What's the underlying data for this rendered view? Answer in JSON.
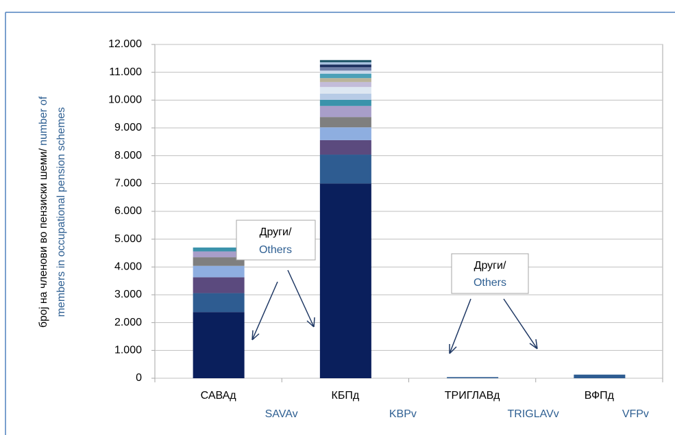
{
  "chart_data": {
    "type": "stacked_bar",
    "categories": [
      "САВАд",
      "КБПд",
      "ТРИГЛАВд",
      "ВФПд"
    ],
    "categories_en": [
      "SAVAv",
      "KBPv",
      "TRIGLAVv",
      "VFPv"
    ],
    "y_label": [
      "број на членови во пензиски шеми/",
      "number of",
      "members in occupational pension schemes"
    ],
    "annotations": [
      [
        "Други/",
        "Others"
      ],
      [
        "Други/",
        "Others"
      ]
    ],
    "ylim": [
      0,
      12000
    ],
    "yticks": [
      0,
      {
        "value": 1000,
        "label": "1.000"
      },
      {
        "value": 2000,
        "label": "2.000"
      },
      {
        "value": 3000,
        "label": "3.000"
      },
      {
        "value": 4000,
        "label": "4.000"
      },
      {
        "value": 5000,
        "label": "5.000"
      },
      {
        "value": 6000,
        "label": "6.000"
      },
      {
        "value": 7000,
        "label": "7.000"
      },
      {
        "value": 8000,
        "label": "8.000"
      },
      {
        "value": 9000,
        "label": "9.000"
      },
      {
        "value": 10000,
        "label": "10.000"
      },
      {
        "value": 11000,
        "label": "11.000"
      },
      {
        "value": 12000,
        "label": "12.000"
      }
    ],
    "grid": true,
    "series": [
      {
        "color": "#0a1f5c",
        "values": [
          2380,
          7000,
          0,
          0
        ]
      },
      {
        "color": "#2e5c91",
        "values": [
          680,
          1040,
          40,
          130
        ]
      },
      {
        "color": "#5b4a7e",
        "values": [
          570,
          520,
          0,
          0
        ]
      },
      {
        "color": "#8eaee0",
        "values": [
          410,
          460,
          0,
          0
        ]
      },
      {
        "color": "#7f7f7f",
        "values": [
          310,
          370,
          0,
          0
        ]
      },
      {
        "color": "#a89ec9",
        "values": [
          210,
          400,
          0,
          0
        ]
      },
      {
        "color": "#3a93ab",
        "values": [
          140,
          220,
          0,
          0
        ]
      },
      {
        "color": "#b7cbe6",
        "values": [
          0,
          220,
          0,
          0
        ]
      },
      {
        "color": "#dde7f2",
        "values": [
          0,
          240,
          0,
          0
        ]
      },
      {
        "color": "#c3bcd9",
        "values": [
          0,
          180,
          0,
          0
        ]
      },
      {
        "color": "#b9b39a",
        "values": [
          0,
          140,
          0,
          0
        ]
      },
      {
        "color": "#4aa0b8",
        "values": [
          0,
          160,
          0,
          0
        ]
      },
      {
        "color": "#c9d8ec",
        "values": [
          0,
          110,
          0,
          0
        ]
      },
      {
        "color": "#6f7fa8",
        "values": [
          0,
          120,
          0,
          0
        ]
      },
      {
        "color": "#1c2f5f",
        "values": [
          0,
          100,
          0,
          0
        ]
      },
      {
        "color": "#a6c0df",
        "values": [
          0,
          80,
          0,
          0
        ]
      },
      {
        "color": "#23586b",
        "values": [
          0,
          80,
          0,
          0
        ]
      }
    ]
  }
}
